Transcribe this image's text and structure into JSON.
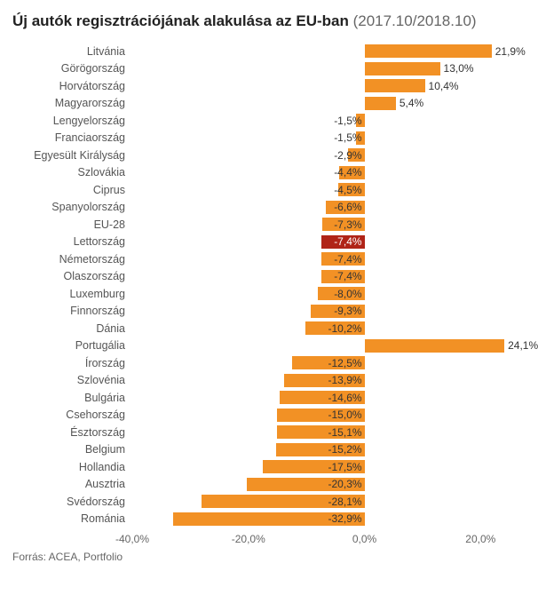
{
  "chart": {
    "type": "bar-horizontal",
    "title_bold": "Új autók regisztrációjának alakulása az EU-ban",
    "title_light": "(2017.10/2018.10)",
    "title_fontsize": 17,
    "label_fontsize": 12.5,
    "value_label_fontsize": 12,
    "background_color": "#ffffff",
    "bar_color": "#f29125",
    "highlight_bar_color": "#b02418",
    "text_color": "#333333",
    "axis_text_color": "#666666",
    "xlim": [
      -40,
      25
    ],
    "xticks": [
      -40,
      -20,
      0,
      20
    ],
    "xtick_labels": [
      "-40,0%",
      "-20,0%",
      "0,0%",
      "20,0%"
    ],
    "source_label": "Forrás: ACEA, Portfolio",
    "categories": [
      "Litvánia",
      "Görögország",
      "Horvátország",
      "Magyarország",
      "Lengyelország",
      "Franciaország",
      "Egyesült Királyság",
      "Szlovákia",
      "Ciprus",
      "Spanyolország",
      "EU-28",
      "Lettország",
      "Németország",
      "Olaszország",
      "Luxemburg",
      "Finnország",
      "Dánia",
      "Portugália",
      "Írország",
      "Szlovénia",
      "Bulgária",
      "Csehország",
      "Észtország",
      "Belgium",
      "Hollandia",
      "Ausztria",
      "Svédország",
      "Románia"
    ],
    "values": [
      21.9,
      13.0,
      10.4,
      5.4,
      -1.5,
      -1.5,
      -2.9,
      -4.4,
      -4.5,
      -6.6,
      -7.3,
      -7.4,
      -7.4,
      -7.4,
      -8.0,
      -9.3,
      -10.2,
      24.1,
      -12.5,
      -13.9,
      -14.6,
      -15.0,
      -15.1,
      -15.2,
      -17.5,
      -20.3,
      -28.1,
      -32.9
    ],
    "value_labels": [
      "21,9%",
      "13,0%",
      "10,4%",
      "5,4%",
      "-1,5%",
      "-1,5%",
      "-2,9%",
      "-4,4%",
      "-4,5%",
      "-6,6%",
      "-7,3%",
      "-7,4%",
      "-7,4%",
      "-7,4%",
      "-8,0%",
      "-9,3%",
      "-10,2%",
      "24,1%",
      "-12,5%",
      "-13,9%",
      "-14,6%",
      "-15,0%",
      "-15,1%",
      "-15,2%",
      "-17,5%",
      "-20,3%",
      "-28,1%",
      "-32,9%"
    ],
    "bar_label_widths": [
      84,
      83,
      75,
      75,
      8,
      8,
      16,
      26,
      26,
      40,
      44,
      44,
      44,
      44,
      48,
      56,
      62,
      146,
      76,
      84,
      88,
      91,
      91,
      92,
      106,
      123,
      170,
      199
    ],
    "highlight_index": 11
  }
}
